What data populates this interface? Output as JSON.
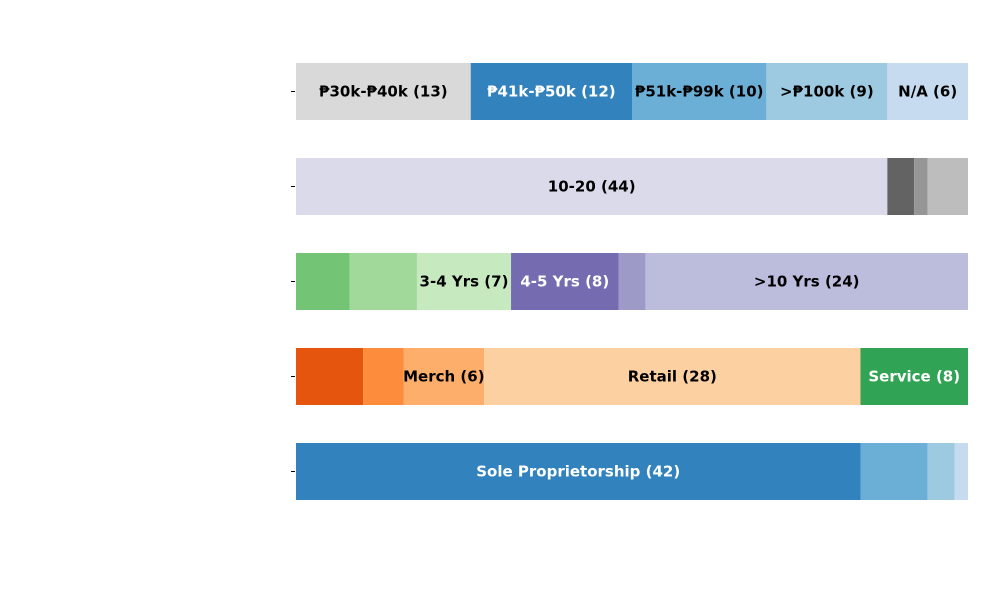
{
  "chart_data": {
    "type": "bar",
    "orientation": "horizontal",
    "stacked": true,
    "title": "",
    "xlabel": "",
    "ylabel": "",
    "grid": false,
    "legend": "none",
    "rows": [
      {
        "segments": [
          {
            "value": 13,
            "label": "₱30k-₱40k (13)",
            "color": "#d9d9d9",
            "label_color": "#000000"
          },
          {
            "value": 12,
            "label": "₱41k-₱50k (12)",
            "color": "#3182bd",
            "label_color": "#ffffff"
          },
          {
            "value": 10,
            "label": "₱51k-₱99k (10)",
            "color": "#6baed6",
            "label_color": "#000000"
          },
          {
            "value": 9,
            "label": ">₱100k (9)",
            "color": "#9ecae1",
            "label_color": "#000000"
          },
          {
            "value": 6,
            "label": "N/A (6)",
            "color": "#c6dbef",
            "label_color": "#000000"
          }
        ]
      },
      {
        "segments": [
          {
            "value": 44,
            "label": "10-20 (44)",
            "color": "#dadaeb",
            "label_color": "#000000"
          },
          {
            "value": 2,
            "label": "",
            "color": "#636363",
            "label_color": "#ffffff"
          },
          {
            "value": 1,
            "label": "",
            "color": "#969696",
            "label_color": "#000000"
          },
          {
            "value": 3,
            "label": "",
            "color": "#bdbdbd",
            "label_color": "#000000"
          }
        ]
      },
      {
        "segments": [
          {
            "value": 4,
            "label": "",
            "color": "#74c476",
            "label_color": "#000000"
          },
          {
            "value": 5,
            "label": "",
            "color": "#a1d99b",
            "label_color": "#000000"
          },
          {
            "value": 7,
            "label": "3-4 Yrs (7)",
            "color": "#c7e9c0",
            "label_color": "#000000"
          },
          {
            "value": 8,
            "label": "4-5 Yrs (8)",
            "color": "#756bb1",
            "label_color": "#ffffff"
          },
          {
            "value": 2,
            "label": "",
            "color": "#9e9ac8",
            "label_color": "#000000"
          },
          {
            "value": 24,
            "label": ">10 Yrs (24)",
            "color": "#bcbddc",
            "label_color": "#000000"
          }
        ]
      },
      {
        "segments": [
          {
            "value": 5,
            "label": "",
            "color": "#e6550d",
            "label_color": "#ffffff"
          },
          {
            "value": 3,
            "label": "",
            "color": "#fd8d3c",
            "label_color": "#000000"
          },
          {
            "value": 6,
            "label": "Merch (6)",
            "color": "#fdae6b",
            "label_color": "#000000"
          },
          {
            "value": 28,
            "label": "Retail (28)",
            "color": "#fdd0a2",
            "label_color": "#000000"
          },
          {
            "value": 8,
            "label": "Service (8)",
            "color": "#31a354",
            "label_color": "#ffffff"
          }
        ]
      },
      {
        "segments": [
          {
            "value": 42,
            "label": "Sole Proprietorship (42)",
            "color": "#3182bd",
            "label_color": "#ffffff"
          },
          {
            "value": 5,
            "label": "",
            "color": "#6baed6",
            "label_color": "#000000"
          },
          {
            "value": 2,
            "label": "",
            "color": "#9ecae1",
            "label_color": "#000000"
          },
          {
            "value": 1,
            "label": "",
            "color": "#c6dbef",
            "label_color": "#000000"
          }
        ]
      }
    ]
  }
}
